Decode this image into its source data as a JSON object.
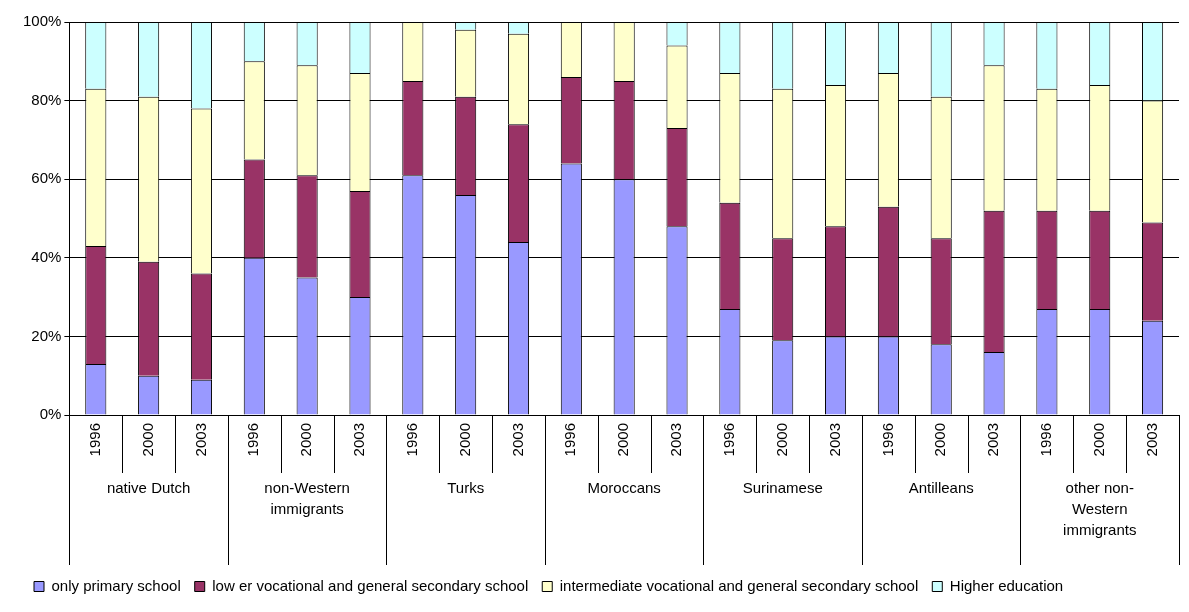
{
  "chart_data": {
    "type": "bar",
    "stacked": true,
    "categories": [
      "1996",
      "2000",
      "2003",
      "1996",
      "2000",
      "2003",
      "1996",
      "2000",
      "2003",
      "1996",
      "2000",
      "2003",
      "1996",
      "2000",
      "2003",
      "1996",
      "2000",
      "2003",
      "1996",
      "2000",
      "2003"
    ],
    "annotations": [
      "native Dutch",
      "non-Western\nimmigrants",
      "Turks",
      "Moroccans",
      "Surinamese",
      "Antilleans",
      "other non-\nWestern\nimmigrants"
    ],
    "series": [
      {
        "name": "only primary school",
        "color": "#9999ff",
        "values": [
          13,
          10,
          9,
          40,
          35,
          30,
          61,
          56,
          44,
          64,
          60,
          48,
          27,
          19,
          20,
          20,
          18,
          16,
          27,
          27,
          24
        ]
      },
      {
        "name": "low er vocational and general secondary school",
        "color": "#993366",
        "values": [
          30,
          29,
          27,
          25,
          26,
          27,
          24,
          25,
          30,
          22,
          25,
          25,
          27,
          26,
          28,
          33,
          27,
          36,
          25,
          25,
          25
        ]
      },
      {
        "name": "intermediate vocational and general secondary school",
        "color": "#ffffcc",
        "values": [
          40,
          42,
          42,
          25,
          28,
          30,
          15,
          17,
          23,
          14,
          15,
          21,
          33,
          38,
          36,
          34,
          36,
          37,
          31,
          32,
          31
        ]
      },
      {
        "name": "Higher education",
        "color": "#ccffff",
        "values": [
          17,
          19,
          22,
          10,
          11,
          13,
          0,
          2,
          3,
          0,
          0,
          6,
          13,
          17,
          16,
          13,
          19,
          11,
          17,
          16,
          20
        ]
      }
    ],
    "ylim": [
      0,
      100
    ],
    "yticks": [
      {
        "value": 0,
        "label": "0%"
      },
      {
        "value": 20,
        "label": "20%"
      },
      {
        "value": 40,
        "label": "40%"
      },
      {
        "value": 60,
        "label": "60%"
      },
      {
        "value": 80,
        "label": "80%"
      },
      {
        "value": 100,
        "label": "100%"
      }
    ],
    "grid": "y",
    "legend": "bottom"
  }
}
